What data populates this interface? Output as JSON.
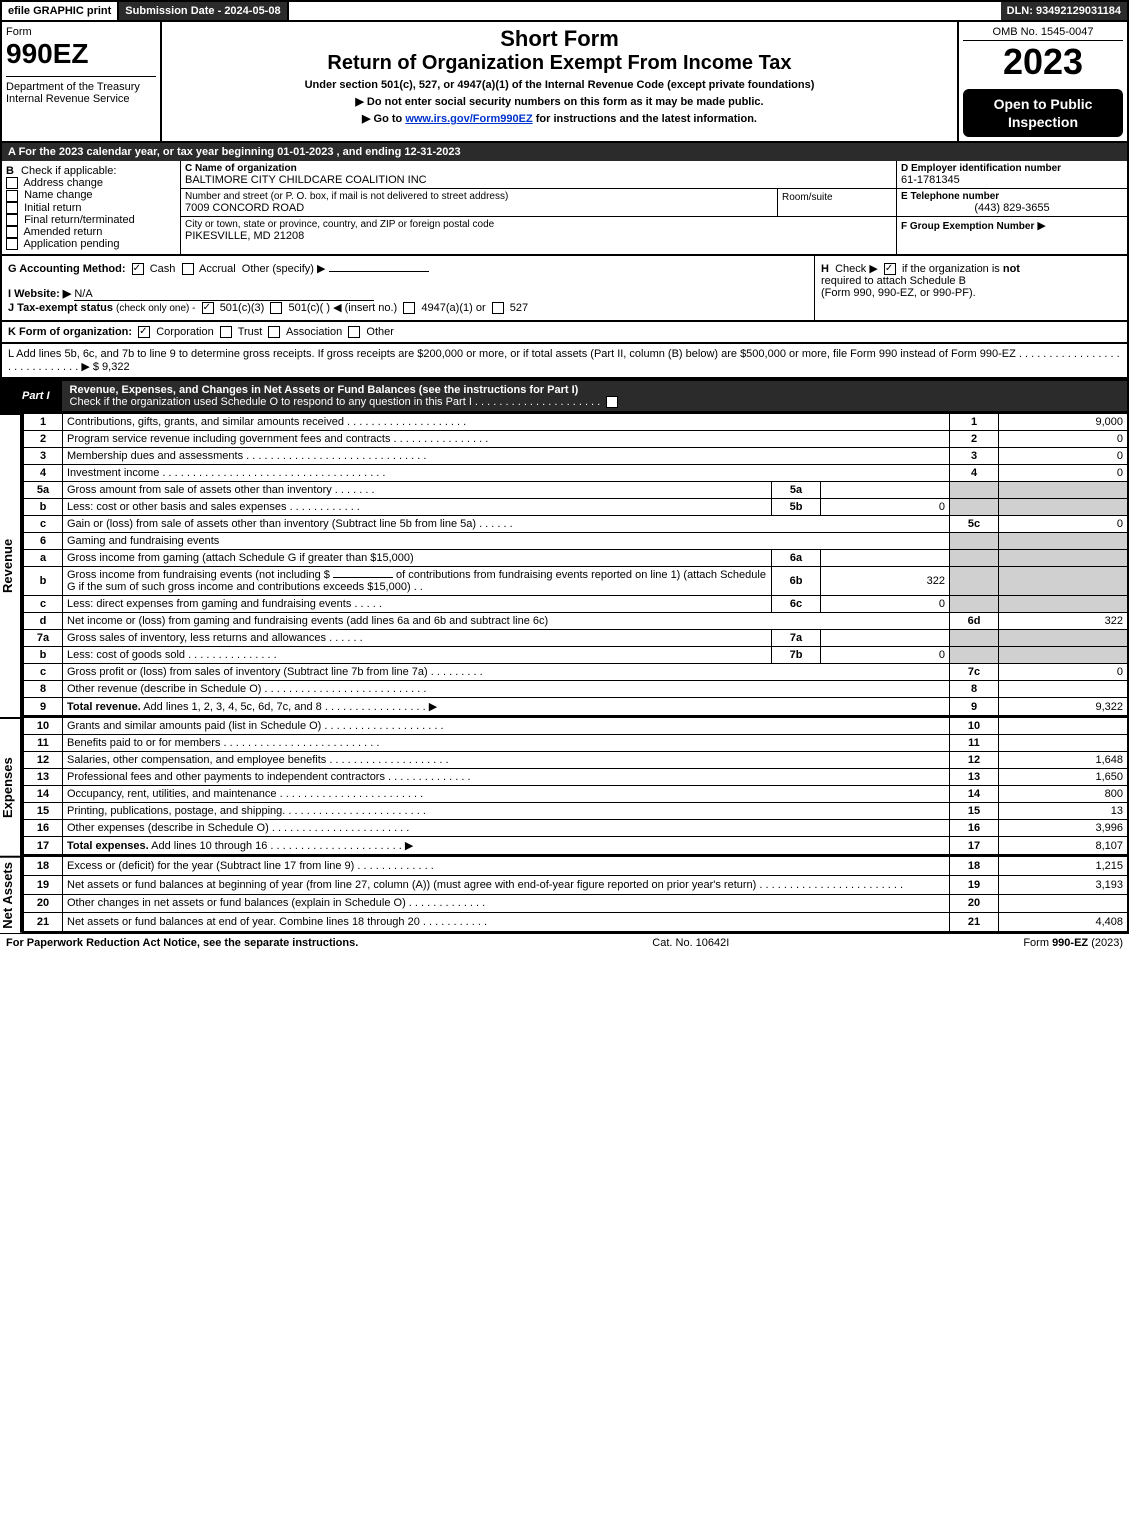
{
  "topbar": {
    "efile": "efile GRAPHIC print",
    "submission": "Submission Date - 2024-05-08",
    "dln": "DLN: 93492129031184"
  },
  "header": {
    "form_label": "Form",
    "form_number": "990EZ",
    "dept1": "Department of the Treasury",
    "dept2": "Internal Revenue Service",
    "title1": "Short Form",
    "title2": "Return of Organization Exempt From Income Tax",
    "subtitle": "Under section 501(c), 527, or 4947(a)(1) of the Internal Revenue Code (except private foundations)",
    "note1": "▶ Do not enter social security numbers on this form as it may be made public.",
    "note2_pre": "▶ Go to ",
    "note2_link": "www.irs.gov/Form990EZ",
    "note2_post": " for instructions and the latest information.",
    "omb": "OMB No. 1545-0047",
    "year": "2023",
    "badge": "Open to Public Inspection"
  },
  "section_a": "A  For the 2023 calendar year, or tax year beginning 01-01-2023 , and ending 12-31-2023",
  "section_b": {
    "label": "Check if applicable:",
    "items": [
      "Address change",
      "Name change",
      "Initial return",
      "Final return/terminated",
      "Amended return",
      "Application pending"
    ]
  },
  "section_c": {
    "label": "C Name of organization",
    "name": "BALTIMORE CITY CHILDCARE COALITION INC",
    "street_label": "Number and street (or P. O. box, if mail is not delivered to street address)",
    "street": "7009 CONCORD ROAD",
    "room_label": "Room/suite",
    "city_label": "City or town, state or province, country, and ZIP or foreign postal code",
    "city": "PIKESVILLE, MD  21208"
  },
  "section_d": {
    "label": "D Employer identification number",
    "value": "61-1781345"
  },
  "section_e": {
    "label": "E Telephone number",
    "value": "(443) 829-3655"
  },
  "section_f": {
    "label": "F Group Exemption Number",
    "arrow": "▶"
  },
  "section_g": {
    "label": "G Accounting Method:",
    "cash": "Cash",
    "accrual": "Accrual",
    "other": "Other (specify) ▶"
  },
  "section_h": {
    "label": "H",
    "text1": "Check ▶",
    "text2": "if the organization is ",
    "not": "not",
    "text3": "required to attach Schedule B",
    "text4": "(Form 990, 990-EZ, or 990-PF)."
  },
  "section_i": {
    "label": "I Website: ▶",
    "value": "N/A"
  },
  "section_j": {
    "label": "J Tax-exempt status",
    "suffix": "(check only one) -",
    "opt1": "501(c)(3)",
    "opt2": "501(c)(  ) ◀ (insert no.)",
    "opt3": "4947(a)(1) or",
    "opt4": "527"
  },
  "section_k": {
    "label": "K Form of organization:",
    "opts": [
      "Corporation",
      "Trust",
      "Association",
      "Other"
    ]
  },
  "section_l": {
    "text": "L Add lines 5b, 6c, and 7b to line 9 to determine gross receipts. If gross receipts are $200,000 or more, or if total assets (Part II, column (B) below) are $500,000 or more, file Form 990 instead of Form 990-EZ  .  .  .  .  .  .  .  .  .  .  .  .  .  .  .  .  .  .  .  .  .  .  .  .  .  .  .  .  .  ▶ $ ",
    "value": "9,322"
  },
  "part1": {
    "label": "Part I",
    "title": "Revenue, Expenses, and Changes in Net Assets or Fund Balances (see the instructions for Part I)",
    "check_line": "Check if the organization used Schedule O to respond to any question in this Part I  .  .  .  .  .  .  .  .  .  .  .  .  .  .  .  .  .  .  .  .  ."
  },
  "vlabels": {
    "revenue": "Revenue",
    "expenses": "Expenses",
    "netassets": "Net Assets"
  },
  "lines": {
    "l1": {
      "no": "1",
      "desc": "Contributions, gifts, grants, and similar amounts received  .  .  .  .  .  .  .  .  .  .  .  .  .  .  .  .  .  .  .  .",
      "num": "1",
      "amt": "9,000"
    },
    "l2": {
      "no": "2",
      "desc": "Program service revenue including government fees and contracts  .  .  .  .  .  .  .  .  .  .  .  .  .  .  .  .",
      "num": "2",
      "amt": "0"
    },
    "l3": {
      "no": "3",
      "desc": "Membership dues and assessments  .  .  .  .  .  .  .  .  .  .  .  .  .  .  .  .  .  .  .  .  .  .  .  .  .  .  .  .  .  .",
      "num": "3",
      "amt": "0"
    },
    "l4": {
      "no": "4",
      "desc": "Investment income  .  .  .  .  .  .  .  .  .  .  .  .  .  .  .  .  .  .  .  .  .  .  .  .  .  .  .  .  .  .  .  .  .  .  .  .  .",
      "num": "4",
      "amt": "0"
    },
    "l5a": {
      "no": "5a",
      "desc": "Gross amount from sale of assets other than inventory  .  .  .  .  .  .  .",
      "sub": "5a",
      "subval": ""
    },
    "l5b": {
      "no": "b",
      "desc": "Less: cost or other basis and sales expenses  .  .  .  .  .  .  .  .  .  .  .  .",
      "sub": "5b",
      "subval": "0"
    },
    "l5c": {
      "no": "c",
      "desc": "Gain or (loss) from sale of assets other than inventory (Subtract line 5b from line 5a)  .  .  .  .  .  .",
      "num": "5c",
      "amt": "0"
    },
    "l6": {
      "no": "6",
      "desc": "Gaming and fundraising events"
    },
    "l6a": {
      "no": "a",
      "desc": "Gross income from gaming (attach Schedule G if greater than $15,000)",
      "sub": "6a",
      "subval": ""
    },
    "l6b": {
      "no": "b",
      "desc1": "Gross income from fundraising events (not including $ ",
      "desc2": " of contributions from fundraising events reported on line 1) (attach Schedule G if the sum of such gross income and contributions exceeds $15,000)    .  .",
      "sub": "6b",
      "subval": "322"
    },
    "l6c": {
      "no": "c",
      "desc": "Less: direct expenses from gaming and fundraising events  .  .  .  .  .",
      "sub": "6c",
      "subval": "0"
    },
    "l6d": {
      "no": "d",
      "desc": "Net income or (loss) from gaming and fundraising events (add lines 6a and 6b and subtract line 6c)",
      "num": "6d",
      "amt": "322"
    },
    "l7a": {
      "no": "7a",
      "desc": "Gross sales of inventory, less returns and allowances  .  .  .  .  .  .",
      "sub": "7a",
      "subval": ""
    },
    "l7b": {
      "no": "b",
      "desc": "Less: cost of goods sold       .  .  .  .  .  .  .  .  .  .  .  .  .  .  .",
      "sub": "7b",
      "subval": "0"
    },
    "l7c": {
      "no": "c",
      "desc": "Gross profit or (loss) from sales of inventory (Subtract line 7b from line 7a)  .  .  .  .  .  .  .  .  .",
      "num": "7c",
      "amt": "0"
    },
    "l8": {
      "no": "8",
      "desc": "Other revenue (describe in Schedule O)  .  .  .  .  .  .  .  .  .  .  .  .  .  .  .  .  .  .  .  .  .  .  .  .  .  .  .",
      "num": "8",
      "amt": ""
    },
    "l9": {
      "no": "9",
      "desc": "Total revenue. Add lines 1, 2, 3, 4, 5c, 6d, 7c, and 8   .  .  .  .  .  .  .  .  .  .  .  .  .  .  .  .  .   ▶",
      "num": "9",
      "amt": "9,322",
      "bold": true
    },
    "l10": {
      "no": "10",
      "desc": "Grants and similar amounts paid (list in Schedule O)  .  .  .  .  .  .  .  .  .  .  .  .  .  .  .  .  .  .  .  .",
      "num": "10",
      "amt": ""
    },
    "l11": {
      "no": "11",
      "desc": "Benefits paid to or for members       .  .  .  .  .  .  .  .  .  .  .  .  .  .  .  .  .  .  .  .  .  .  .  .  .  .",
      "num": "11",
      "amt": ""
    },
    "l12": {
      "no": "12",
      "desc": "Salaries, other compensation, and employee benefits  .  .  .  .  .  .  .  .  .  .  .  .  .  .  .  .  .  .  .  .",
      "num": "12",
      "amt": "1,648"
    },
    "l13": {
      "no": "13",
      "desc": "Professional fees and other payments to independent contractors  .  .  .  .  .  .  .  .  .  .  .  .  .  .",
      "num": "13",
      "amt": "1,650"
    },
    "l14": {
      "no": "14",
      "desc": "Occupancy, rent, utilities, and maintenance .  .  .  .  .  .  .  .  .  .  .  .  .  .  .  .  .  .  .  .  .  .  .  .",
      "num": "14",
      "amt": "800"
    },
    "l15": {
      "no": "15",
      "desc": "Printing, publications, postage, and shipping.  .  .  .  .  .  .  .  .  .  .  .  .  .  .  .  .  .  .  .  .  .  .  .",
      "num": "15",
      "amt": "13"
    },
    "l16": {
      "no": "16",
      "desc": "Other expenses (describe in Schedule O)     .  .  .  .  .  .  .  .  .  .  .  .  .  .  .  .  .  .  .  .  .  .  .",
      "num": "16",
      "amt": "3,996"
    },
    "l17": {
      "no": "17",
      "desc": "Total expenses. Add lines 10 through 16     .  .  .  .  .  .  .  .  .  .  .  .  .  .  .  .  .  .  .  .  .  .  ▶",
      "num": "17",
      "amt": "8,107",
      "bold": true
    },
    "l18": {
      "no": "18",
      "desc": "Excess or (deficit) for the year (Subtract line 17 from line 9)       .  .  .  .  .  .  .  .  .  .  .  .  .",
      "num": "18",
      "amt": "1,215"
    },
    "l19": {
      "no": "19",
      "desc": "Net assets or fund balances at beginning of year (from line 27, column (A)) (must agree with end-of-year figure reported on prior year's return) .  .  .  .  .  .  .  .  .  .  .  .  .  .  .  .  .  .  .  .  .  .  .  .",
      "num": "19",
      "amt": "3,193"
    },
    "l20": {
      "no": "20",
      "desc": "Other changes in net assets or fund balances (explain in Schedule O)  .  .  .  .  .  .  .  .  .  .  .  .  .",
      "num": "20",
      "amt": ""
    },
    "l21": {
      "no": "21",
      "desc": "Net assets or fund balances at end of year. Combine lines 18 through 20  .  .  .  .  .  .  .  .  .  .  .",
      "num": "21",
      "amt": "4,408"
    }
  },
  "footer": {
    "left": "For Paperwork Reduction Act Notice, see the separate instructions.",
    "mid": "Cat. No. 10642I",
    "right_pre": "Form ",
    "right_bold": "990-EZ",
    "right_post": " (2023)"
  }
}
